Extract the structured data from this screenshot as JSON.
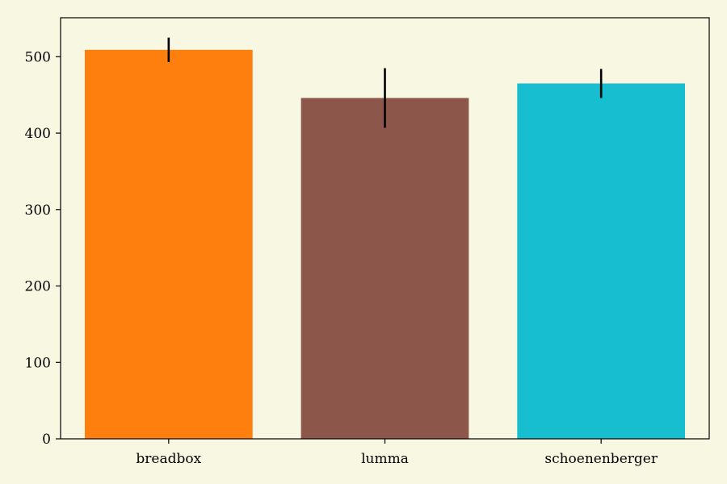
{
  "chart_data": {
    "type": "bar",
    "categories": [
      "breadbox",
      "lumma",
      "schoenenberger"
    ],
    "values": [
      509,
      446,
      465
    ],
    "errors": [
      16,
      39,
      19
    ],
    "colors": [
      "#ff7f0e",
      "#8c564b",
      "#17becf"
    ],
    "title": "",
    "xlabel": "",
    "ylabel": "",
    "ylim": [
      0,
      551
    ],
    "yticks": [
      0,
      100,
      200,
      300,
      400,
      500
    ],
    "ytick_labels": [
      "0",
      "100",
      "200",
      "300",
      "400",
      "500"
    ],
    "grid": false,
    "legend": false,
    "background": "#f8f7e1"
  }
}
